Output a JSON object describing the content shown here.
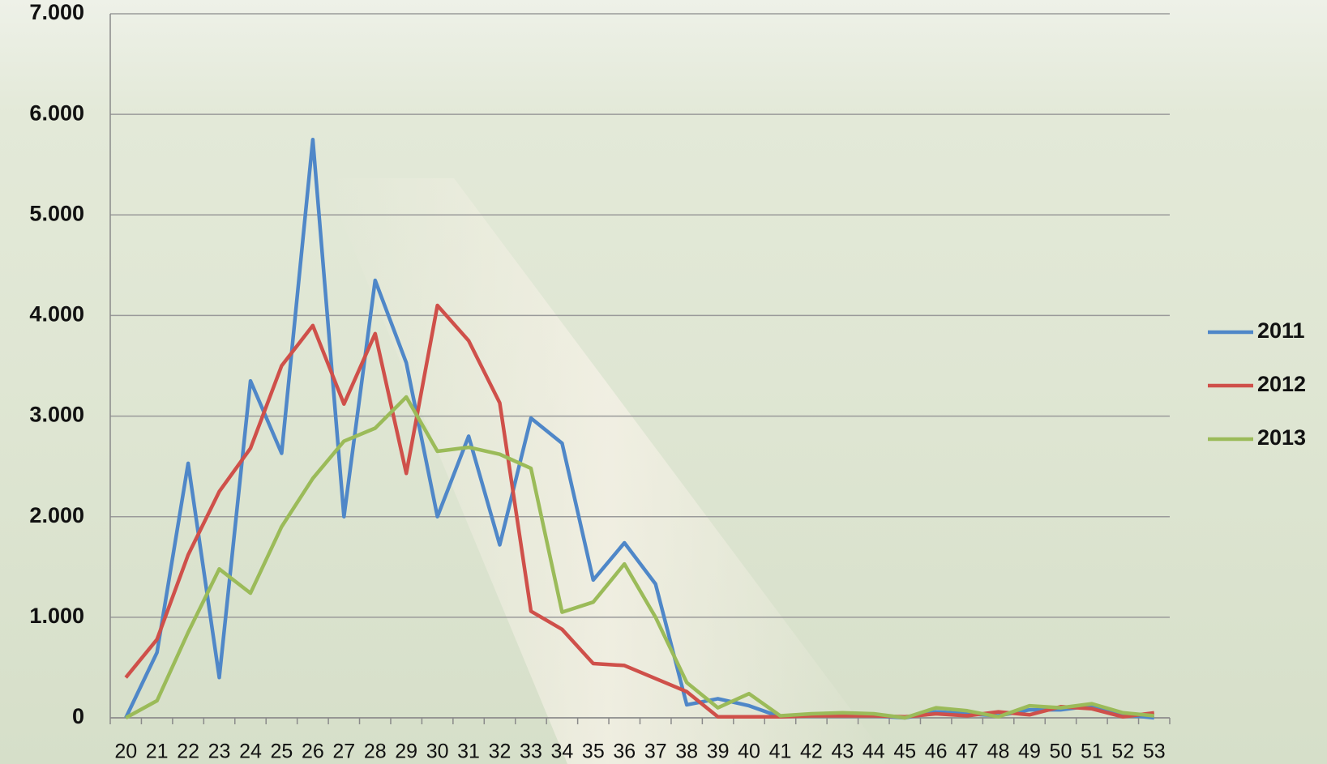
{
  "chart_data": {
    "type": "line",
    "categories": [
      "20",
      "21",
      "22",
      "23",
      "24",
      "25",
      "26",
      "27",
      "28",
      "29",
      "30",
      "31",
      "32",
      "33",
      "34",
      "35",
      "36",
      "37",
      "38",
      "39",
      "40",
      "41",
      "42",
      "43",
      "44",
      "45",
      "46",
      "47",
      "48",
      "49",
      "50",
      "51",
      "52",
      "53"
    ],
    "series": [
      {
        "name": "2011",
        "color": "#4f87c8",
        "values": [
          0,
          650,
          2530,
          400,
          3350,
          2630,
          5750,
          2000,
          4350,
          3530,
          2000,
          2800,
          1720,
          2980,
          2730,
          1370,
          1740,
          1330,
          130,
          190,
          120,
          10,
          30,
          30,
          20,
          0,
          60,
          40,
          20,
          80,
          80,
          120,
          30,
          0
        ]
      },
      {
        "name": "2012",
        "color": "#cf504a",
        "values": [
          400,
          780,
          1620,
          2250,
          2680,
          3500,
          3900,
          3120,
          3820,
          2430,
          4100,
          3750,
          3130,
          1060,
          880,
          540,
          520,
          390,
          260,
          10,
          10,
          10,
          20,
          20,
          20,
          10,
          40,
          20,
          60,
          30,
          110,
          90,
          10,
          50
        ]
      },
      {
        "name": "2013",
        "color": "#9bbb59",
        "values": [
          0,
          170,
          850,
          1480,
          1240,
          1900,
          2380,
          2750,
          2880,
          3190,
          2650,
          2690,
          2620,
          2480,
          1050,
          1150,
          1530,
          1000,
          350,
          100,
          240,
          20,
          40,
          50,
          40,
          0,
          100,
          70,
          10,
          120,
          100,
          140,
          50,
          20
        ]
      }
    ],
    "ylim": [
      0,
      7000
    ],
    "yticks": [
      0,
      {
        "value": 1000,
        "label": "1.000"
      },
      {
        "value": 2000,
        "label": "2.000"
      },
      {
        "value": 3000,
        "label": "3.000"
      },
      {
        "value": 4000,
        "label": "4.000"
      },
      {
        "value": 5000,
        "label": "5.000"
      },
      {
        "value": 6000,
        "label": "6.000"
      },
      {
        "value": 7000,
        "label": "7.000"
      }
    ],
    "grid": true,
    "legend": "right"
  }
}
